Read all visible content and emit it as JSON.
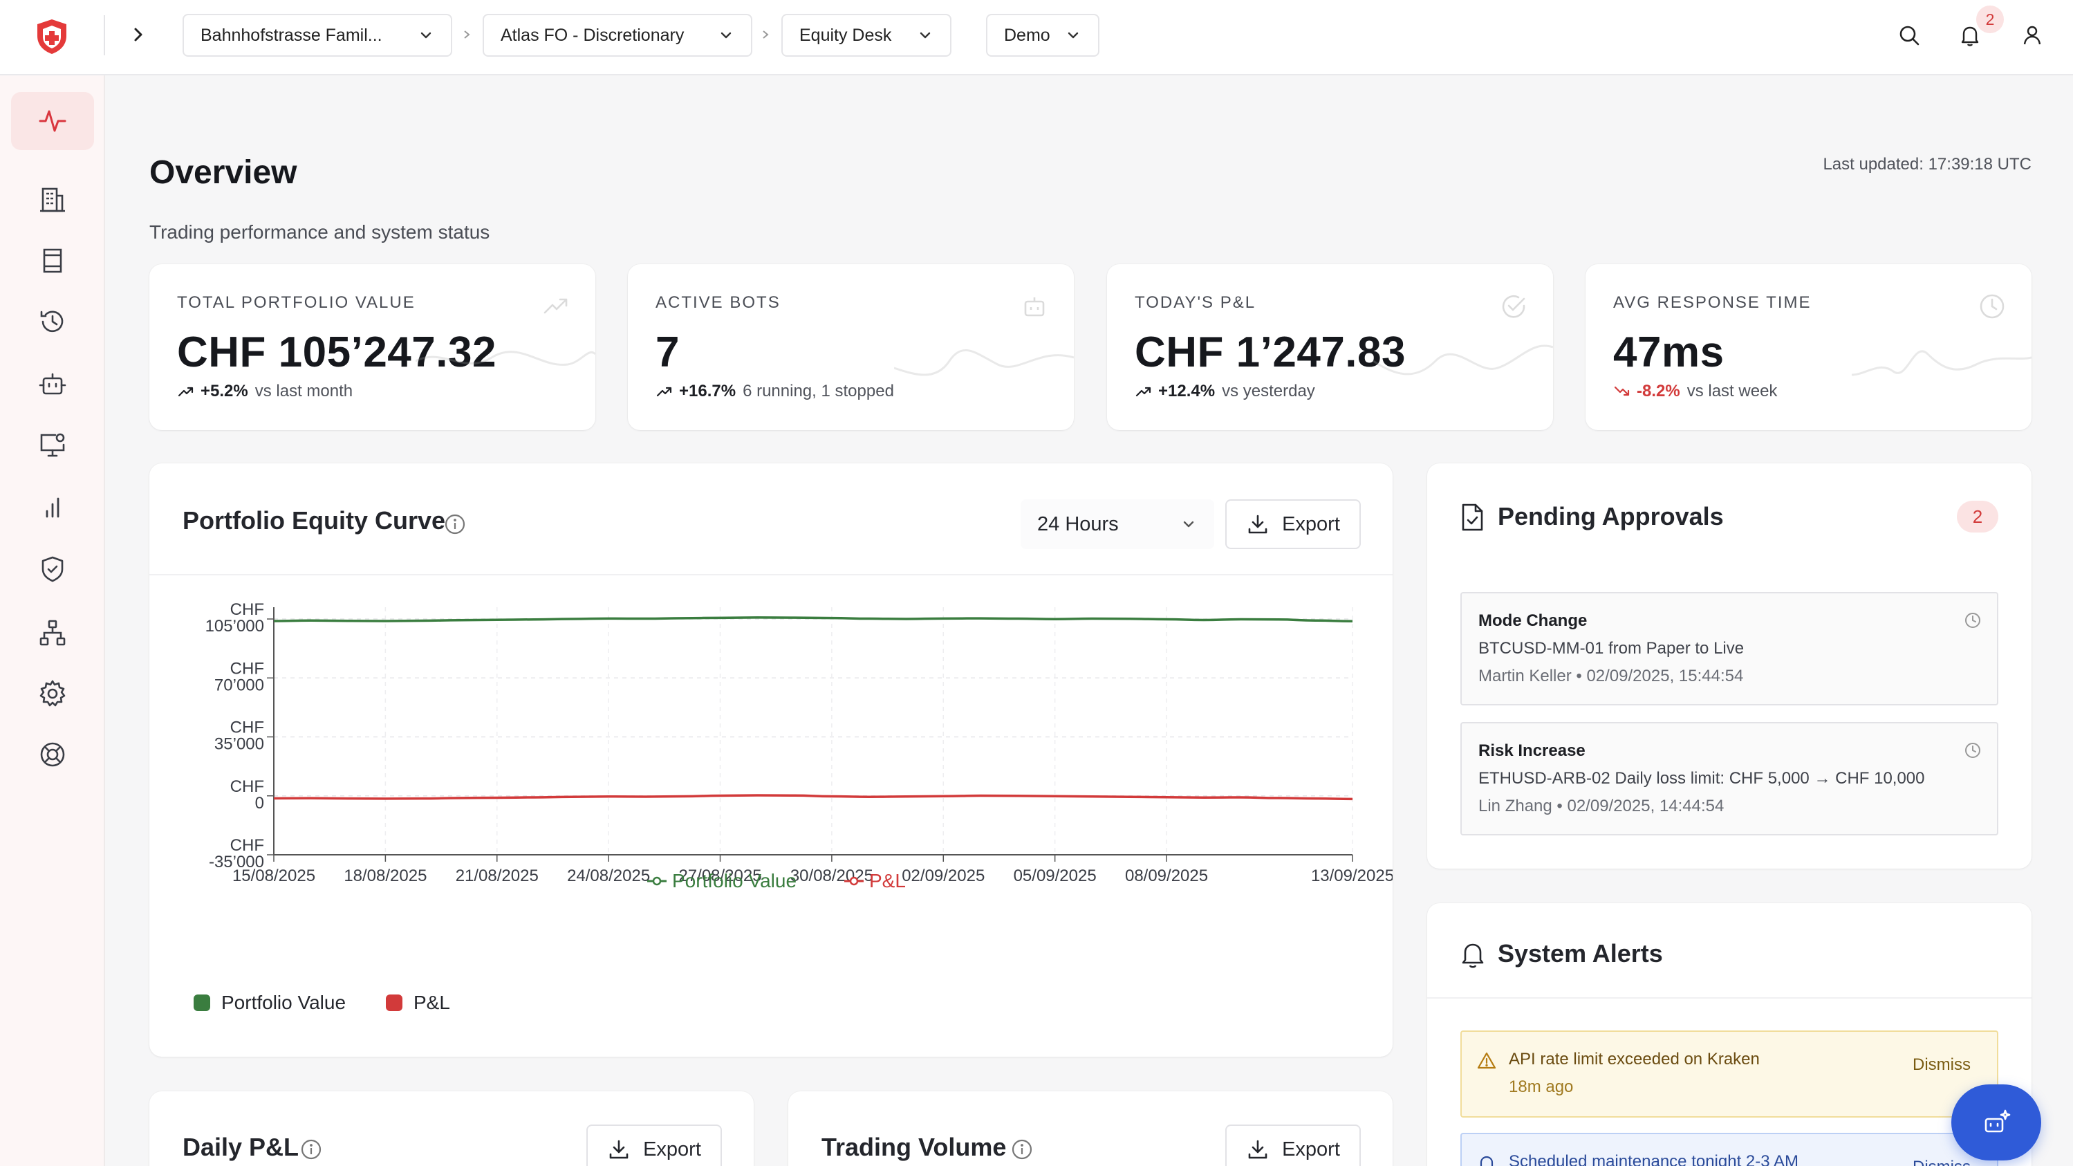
{
  "header": {
    "breadcrumbs": [
      {
        "label": "Bahnhofstrasse Famil..."
      },
      {
        "label": "Atlas FO - Discretionary"
      },
      {
        "label": "Equity Desk"
      },
      {
        "label": "Demo"
      }
    ],
    "notification_count": "2",
    "icons": [
      "search-icon",
      "bell-icon",
      "user-icon"
    ]
  },
  "sidebar": {
    "items": [
      {
        "name": "activity",
        "icon": "activity-icon",
        "active": true
      },
      {
        "name": "buildings",
        "icon": "building-icon"
      },
      {
        "name": "ledger",
        "icon": "ledger-icon"
      },
      {
        "name": "history",
        "icon": "history-icon"
      },
      {
        "name": "bots",
        "icon": "bot-icon"
      },
      {
        "name": "monitor",
        "icon": "monitor-icon"
      },
      {
        "name": "analytics",
        "icon": "bar-chart-icon"
      },
      {
        "name": "risk",
        "icon": "shield-icon"
      },
      {
        "name": "network",
        "icon": "network-icon"
      },
      {
        "name": "settings",
        "icon": "gear-icon"
      },
      {
        "name": "support",
        "icon": "lifebuoy-icon"
      }
    ]
  },
  "page": {
    "title": "Overview",
    "subtitle": "Trading performance and system status",
    "last_updated": "Last updated: 17:39:18 UTC"
  },
  "stats": [
    {
      "label": "TOTAL PORTFOLIO VALUE",
      "value": "CHF 105’247.32",
      "change": "+5.2%",
      "comparison": "vs last month",
      "direction": "up",
      "icon": "trending-up-icon"
    },
    {
      "label": "ACTIVE BOTS",
      "value": "7",
      "change": "+16.7%",
      "comparison": "6 running, 1 stopped",
      "direction": "up",
      "icon": "bot-icon"
    },
    {
      "label": "TODAY'S P&L",
      "value": "CHF 1’247.83",
      "change": "+12.4%",
      "comparison": "vs yesterday",
      "direction": "up",
      "icon": "check-circle-icon"
    },
    {
      "label": "AVG RESPONSE TIME",
      "value": "47ms",
      "change": "-8.2%",
      "comparison": "vs last week",
      "direction": "down",
      "icon": "clock-icon"
    }
  ],
  "equity_panel": {
    "title": "Portfolio Equity Curve",
    "range_select": "24 Hours",
    "export_label": "Export",
    "legend": [
      {
        "label": "Portfolio Value",
        "color": "#3a7d3f"
      },
      {
        "label": "P&L",
        "color": "#d23a3a"
      }
    ]
  },
  "chart_data": {
    "type": "line",
    "x": [
      "15/08/2025",
      "16/08/2025",
      "17/08/2025",
      "18/08/2025",
      "19/08/2025",
      "20/08/2025",
      "21/08/2025",
      "22/08/2025",
      "23/08/2025",
      "24/08/2025",
      "25/08/2025",
      "26/08/2025",
      "27/08/2025",
      "28/08/2025",
      "29/08/2025",
      "30/08/2025",
      "31/08/2025",
      "01/09/2025",
      "02/09/2025",
      "03/09/2025",
      "04/09/2025",
      "05/09/2025",
      "06/09/2025",
      "07/09/2025",
      "08/09/2025",
      "09/09/2025",
      "10/09/2025",
      "11/09/2025",
      "12/09/2025",
      "13/09/2025"
    ],
    "x_tick_labels": [
      "15/08/2025",
      "18/08/2025",
      "21/08/2025",
      "24/08/2025",
      "27/08/2025",
      "30/08/2025",
      "02/09/2025",
      "05/09/2025",
      "08/09/2025",
      "13/09/2025"
    ],
    "series": [
      {
        "name": "Portfolio Value",
        "color": "#3a7d3f",
        "values": [
          103800,
          104100,
          103900,
          103800,
          104000,
          104300,
          104500,
          104700,
          105000,
          105300,
          105200,
          105500,
          105700,
          105900,
          105800,
          105600,
          105200,
          105000,
          105300,
          105400,
          105200,
          104900,
          105200,
          105100,
          104800,
          104400,
          104800,
          104700,
          104100,
          103700
        ]
      },
      {
        "name": "P&L",
        "color": "#d23a3a",
        "values": [
          -1500,
          -1400,
          -1600,
          -1700,
          -1600,
          -1300,
          -1100,
          -900,
          -600,
          -400,
          -500,
          -300,
          100,
          300,
          200,
          -300,
          -600,
          -400,
          -200,
          100,
          0,
          -200,
          -400,
          -600,
          -800,
          -1000,
          -900,
          -1300,
          -1600,
          -1900
        ]
      }
    ],
    "y_ticks": [
      "CHF 105’000",
      "CHF 70’000",
      "CHF 35’000",
      "CHF 0",
      "CHF -35’000"
    ],
    "ylim": [
      -35000,
      112000
    ],
    "grid": true,
    "legend": "bottom"
  },
  "approvals": {
    "title": "Pending Approvals",
    "count": "2",
    "items": [
      {
        "title": "Mode Change",
        "description": "BTCUSD-MM-01 from Paper to Live",
        "meta": "Martin Keller • 02/09/2025, 15:44:54"
      },
      {
        "title": "Risk Increase",
        "description": "ETHUSD-ARB-02 Daily loss limit: CHF 5,000 → CHF 10,000",
        "meta": "Lin Zhang • 02/09/2025, 14:44:54"
      }
    ]
  },
  "alerts": {
    "title": "System Alerts",
    "items": [
      {
        "level": "warning",
        "message": "API rate limit exceeded on Kraken",
        "time": "18m ago",
        "dismiss": "Dismiss"
      },
      {
        "level": "info",
        "message": "Scheduled maintenance tonight 2-3 AM",
        "dismiss": "Dismiss"
      }
    ]
  },
  "daily_pnl": {
    "title": "Daily P&L",
    "export_label": "Export"
  },
  "trading_volume": {
    "title": "Trading Volume",
    "export_label": "Export"
  }
}
